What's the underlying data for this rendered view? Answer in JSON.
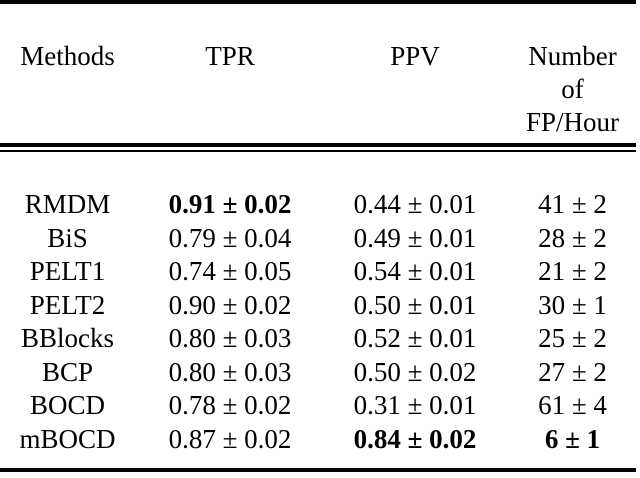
{
  "page": {
    "background": "#ffffff",
    "text_color": "#000000",
    "rule_color": "#000000"
  },
  "table": {
    "headers": {
      "methods": "Methods",
      "tpr": "TPR",
      "ppv": "PPV",
      "fp_line1": "Number",
      "fp_line2": "of",
      "fp_line3": "FP/Hour"
    },
    "rows": [
      {
        "method": "RMDM",
        "tpr": "0.91 ± 0.02",
        "tpr_bold": true,
        "ppv": "0.44 ± 0.01",
        "ppv_bold": false,
        "fp": "41 ± 2",
        "fp_bold": false
      },
      {
        "method": "BiS",
        "tpr": "0.79 ± 0.04",
        "tpr_bold": false,
        "ppv": "0.49 ± 0.01",
        "ppv_bold": false,
        "fp": "28 ± 2",
        "fp_bold": false
      },
      {
        "method": "PELT1",
        "tpr": "0.74 ± 0.05",
        "tpr_bold": false,
        "ppv": "0.54 ± 0.01",
        "ppv_bold": false,
        "fp": "21 ± 2",
        "fp_bold": false
      },
      {
        "method": "PELT2",
        "tpr": "0.90 ± 0.02",
        "tpr_bold": false,
        "ppv": "0.50 ± 0.01",
        "ppv_bold": false,
        "fp": "30 ± 1",
        "fp_bold": false
      },
      {
        "method": "BBlocks",
        "tpr": "0.80 ± 0.03",
        "tpr_bold": false,
        "ppv": "0.52 ± 0.01",
        "ppv_bold": false,
        "fp": "25 ± 2",
        "fp_bold": false
      },
      {
        "method": "BCP",
        "tpr": "0.80 ± 0.03",
        "tpr_bold": false,
        "ppv": "0.50 ± 0.02",
        "ppv_bold": false,
        "fp": "27 ± 2",
        "fp_bold": false
      },
      {
        "method": "BOCD",
        "tpr": "0.78 ± 0.02",
        "tpr_bold": false,
        "ppv": "0.31 ± 0.01",
        "ppv_bold": false,
        "fp": "61 ± 4",
        "fp_bold": false
      },
      {
        "method": "mBOCD",
        "tpr": "0.87 ± 0.02",
        "tpr_bold": false,
        "ppv": "0.84 ± 0.02",
        "ppv_bold": true,
        "fp": "6 ± 1",
        "fp_bold": true
      }
    ]
  }
}
